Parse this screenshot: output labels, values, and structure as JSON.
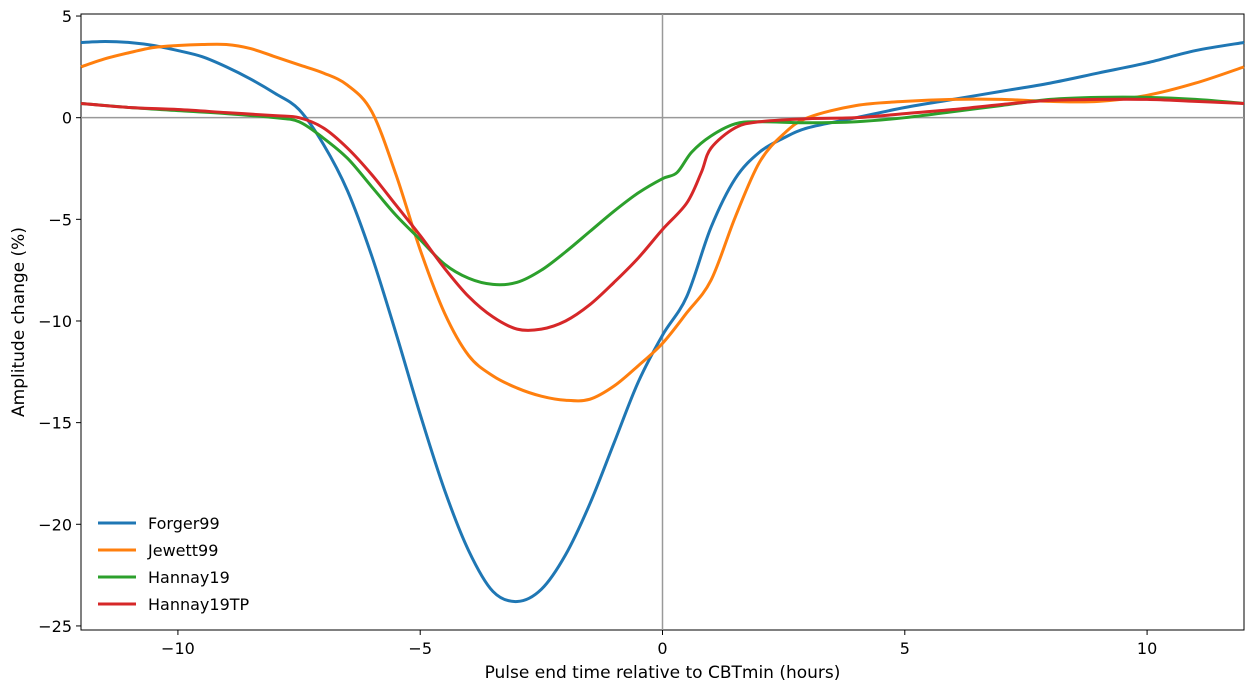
{
  "chart_data": {
    "type": "line",
    "title": "",
    "xlabel": "Pulse end time relative to CBTmin (hours)",
    "ylabel": "Amplitude change (%)",
    "xlim": [
      -12,
      12
    ],
    "ylim": [
      -25.2,
      5.1
    ],
    "xticks": [
      -10,
      -5,
      0,
      5,
      10
    ],
    "yticks": [
      5,
      0,
      -5,
      -10,
      -15,
      -20,
      -25
    ],
    "xtick_labels": [
      "−10",
      "−5",
      "0",
      "5",
      "10"
    ],
    "ytick_labels": [
      "5",
      "0",
      "−5",
      "−10",
      "−15",
      "−20",
      "−25"
    ],
    "reference_lines": {
      "x": 0,
      "y": 0
    },
    "grid": false,
    "legend_position": "lower-left",
    "series": [
      {
        "name": "Forger99",
        "color": "#1f77b4",
        "x": [
          -12,
          -11.5,
          -11,
          -10.5,
          -10,
          -9.5,
          -9,
          -8.5,
          -8,
          -7.5,
          -7,
          -6.5,
          -6,
          -5.5,
          -5,
          -4.5,
          -4,
          -3.5,
          -3,
          -2.5,
          -2,
          -1.5,
          -1,
          -0.5,
          0,
          0.5,
          1,
          1.5,
          2,
          2.5,
          3,
          4,
          5,
          6,
          7,
          8,
          9,
          10,
          11,
          12
        ],
        "values": [
          3.7,
          3.75,
          3.7,
          3.55,
          3.3,
          3.0,
          2.5,
          1.9,
          1.2,
          0.4,
          -1.3,
          -3.6,
          -6.8,
          -10.6,
          -14.6,
          -18.3,
          -21.3,
          -23.3,
          -23.8,
          -23.2,
          -21.5,
          -19.0,
          -16.0,
          -13.0,
          -10.7,
          -8.8,
          -5.4,
          -3.0,
          -1.7,
          -1.0,
          -0.5,
          0.0,
          0.5,
          0.9,
          1.3,
          1.7,
          2.2,
          2.7,
          3.3,
          3.7
        ]
      },
      {
        "name": "Jewett99",
        "color": "#ff7f0e",
        "x": [
          -12,
          -11.5,
          -11,
          -10.5,
          -10,
          -9.5,
          -9,
          -8.5,
          -8,
          -7.5,
          -7,
          -6.5,
          -6,
          -5.5,
          -5,
          -4.5,
          -4,
          -3.5,
          -3,
          -2.5,
          -2,
          -1.5,
          -1,
          -0.5,
          0,
          0.5,
          1,
          1.5,
          2,
          2.5,
          3,
          4,
          5,
          6,
          7,
          8,
          9,
          10,
          11,
          12
        ],
        "values": [
          2.5,
          2.9,
          3.2,
          3.45,
          3.55,
          3.6,
          3.6,
          3.4,
          3.0,
          2.6,
          2.2,
          1.6,
          0.3,
          -2.8,
          -6.5,
          -9.6,
          -11.7,
          -12.7,
          -13.3,
          -13.7,
          -13.9,
          -13.85,
          -13.2,
          -12.2,
          -11.1,
          -9.6,
          -8.0,
          -4.9,
          -2.2,
          -0.8,
          0.0,
          0.6,
          0.8,
          0.9,
          0.9,
          0.8,
          0.8,
          1.1,
          1.7,
          2.5
        ]
      },
      {
        "name": "Hannay19",
        "color": "#2ca02c",
        "x": [
          -12,
          -11,
          -10,
          -9,
          -8,
          -7.5,
          -7,
          -6.5,
          -6,
          -5.5,
          -5,
          -4.5,
          -4,
          -3.5,
          -3,
          -2.5,
          -2,
          -1.5,
          -1,
          -0.5,
          0,
          0.3,
          0.6,
          1,
          1.5,
          2,
          3,
          4,
          5,
          6,
          7,
          8,
          9,
          10,
          11,
          12
        ],
        "values": [
          0.7,
          0.5,
          0.35,
          0.2,
          0.0,
          -0.2,
          -1.0,
          -2.0,
          -3.4,
          -4.8,
          -6.0,
          -7.2,
          -7.9,
          -8.2,
          -8.1,
          -7.5,
          -6.6,
          -5.6,
          -4.6,
          -3.7,
          -3.0,
          -2.7,
          -1.7,
          -0.9,
          -0.3,
          -0.2,
          -0.25,
          -0.2,
          0.0,
          0.3,
          0.6,
          0.9,
          1.0,
          1.0,
          0.9,
          0.7
        ]
      },
      {
        "name": "Hannay19TP",
        "color": "#d62728",
        "x": [
          -12,
          -11,
          -10,
          -9,
          -8,
          -7.5,
          -7,
          -6.5,
          -6,
          -5.5,
          -5,
          -4.5,
          -4,
          -3.5,
          -3,
          -2.5,
          -2,
          -1.5,
          -1,
          -0.5,
          0,
          0.5,
          0.8,
          1,
          1.5,
          2,
          3,
          4,
          5,
          6,
          7,
          8,
          9,
          10,
          11,
          12
        ],
        "values": [
          0.7,
          0.5,
          0.4,
          0.25,
          0.1,
          0.0,
          -0.5,
          -1.5,
          -2.8,
          -4.3,
          -5.8,
          -7.4,
          -8.8,
          -9.8,
          -10.4,
          -10.4,
          -10.0,
          -9.2,
          -8.1,
          -6.9,
          -5.5,
          -4.2,
          -2.7,
          -1.5,
          -0.5,
          -0.2,
          -0.05,
          0.0,
          0.2,
          0.4,
          0.65,
          0.85,
          0.9,
          0.9,
          0.8,
          0.7
        ]
      }
    ]
  }
}
